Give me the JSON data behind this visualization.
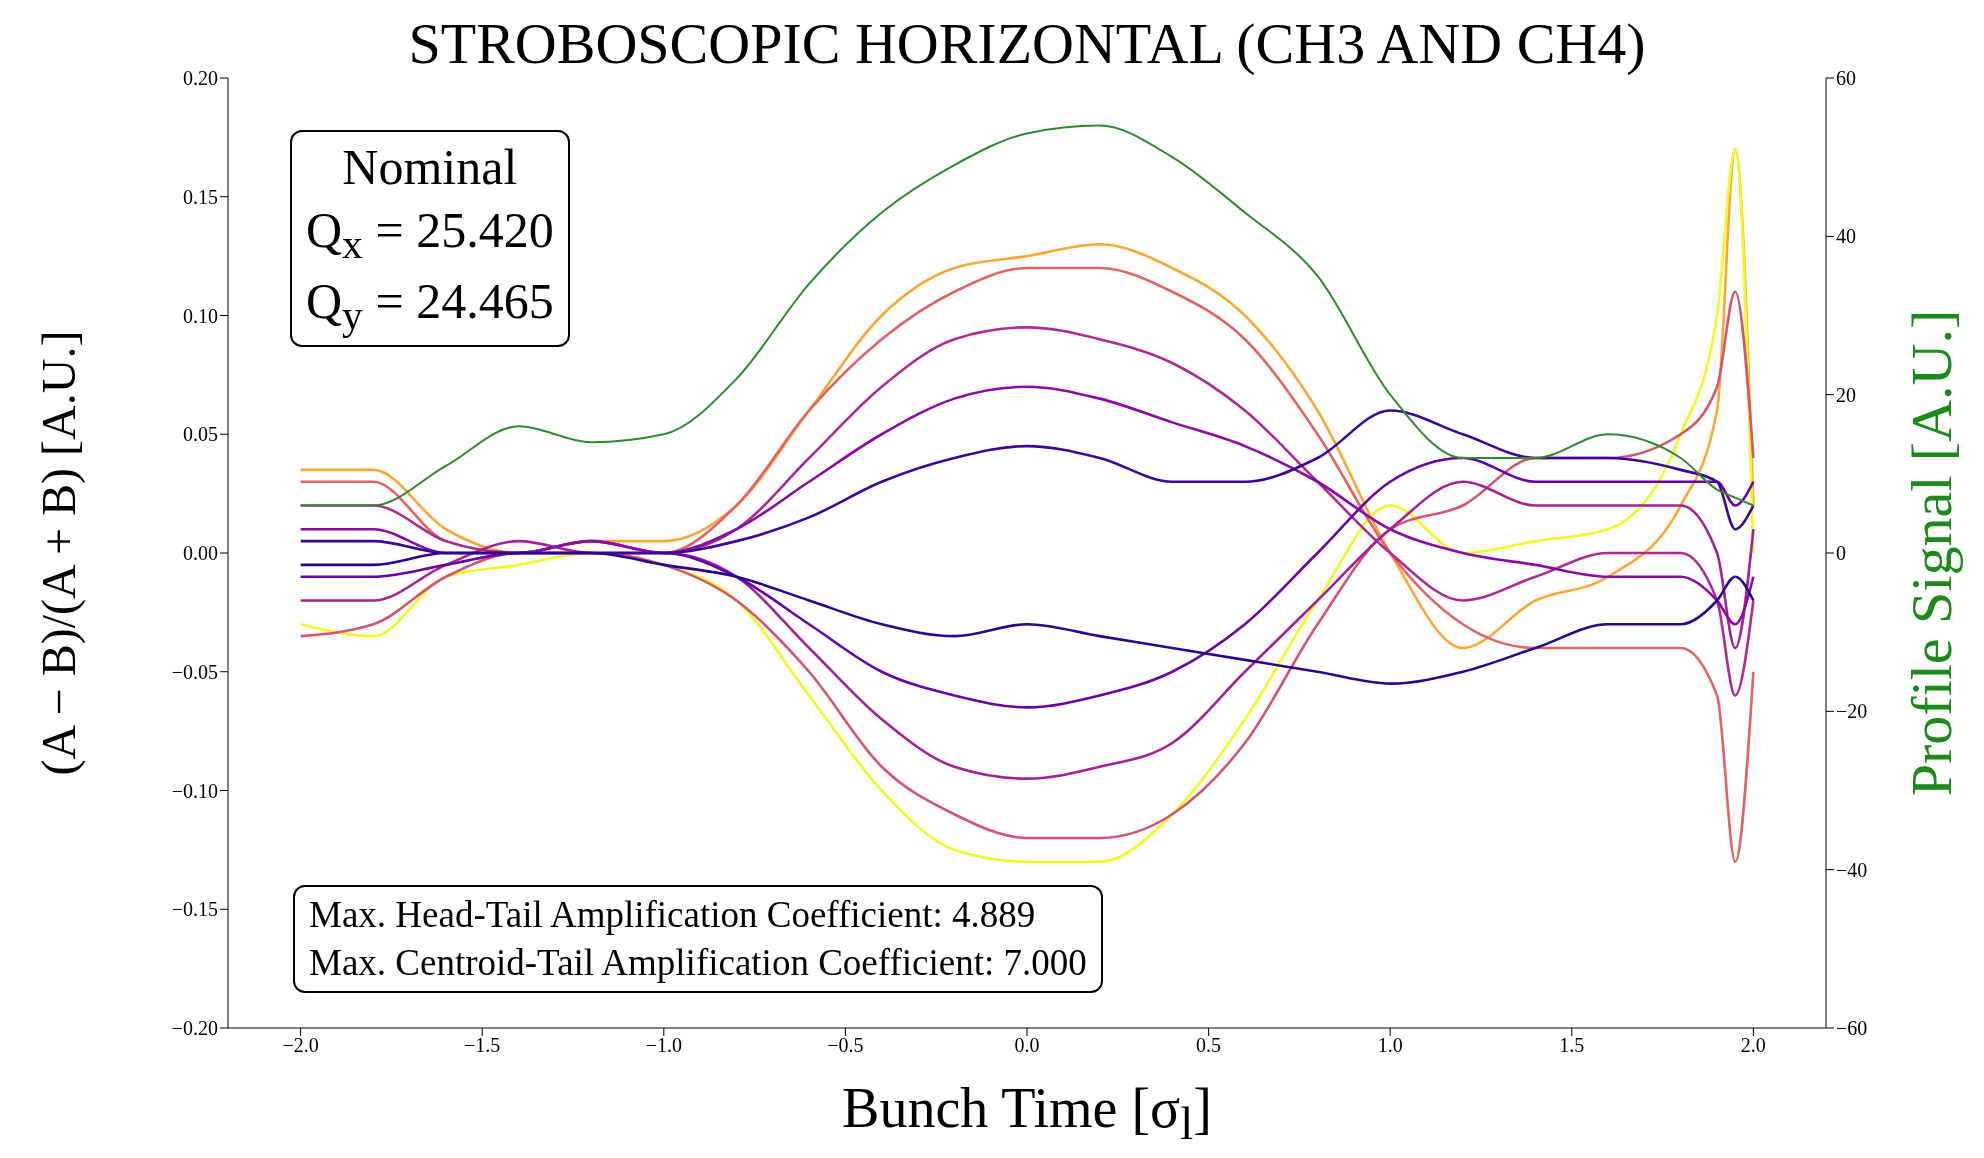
{
  "chart_data": {
    "type": "line",
    "title": "STROBOSCOPIC HORIZONTAL (CH3 AND CH4)",
    "xlabel": "Bunch Time [σ$_{l}$]",
    "ylabel": "(A − B)/(A + B) [A.U.]",
    "y2label": "Profile Signal [A.U.]",
    "x": [
      -2,
      -1.8,
      -1.6,
      -1.4,
      -1.2,
      -1.0,
      -0.8,
      -0.6,
      -0.4,
      -0.2,
      0,
      0.2,
      0.4,
      0.6,
      0.8,
      1.0,
      1.2,
      1.4,
      1.6,
      1.8,
      1.9,
      1.95,
      2.0
    ],
    "xlim": [
      -2.2,
      2.2
    ],
    "xticks": [
      {
        "value": -2,
        "label": "−2.0"
      },
      {
        "value": -1.5,
        "label": "−1.5"
      },
      {
        "value": -1,
        "label": "−1.0"
      },
      {
        "value": -0.5,
        "label": "−0.5"
      },
      {
        "value": 0,
        "label": "0.0"
      },
      {
        "value": 0.5,
        "label": "0.5"
      },
      {
        "value": 1,
        "label": "1.0"
      },
      {
        "value": 1.5,
        "label": "1.5"
      },
      {
        "value": 2,
        "label": "2.0"
      }
    ],
    "ylim": [
      -0.2,
      0.2
    ],
    "yticks": [
      {
        "value": -0.2,
        "label": "−0.20"
      },
      {
        "value": -0.15,
        "label": "−0.15"
      },
      {
        "value": -0.1,
        "label": "−0.10"
      },
      {
        "value": -0.05,
        "label": "−0.05"
      },
      {
        "value": 0,
        "label": "0.00"
      },
      {
        "value": 0.05,
        "label": "0.05"
      },
      {
        "value": 0.1,
        "label": "0.10"
      },
      {
        "value": 0.15,
        "label": "0.15"
      },
      {
        "value": 0.2,
        "label": "0.20"
      }
    ],
    "y2lim": [
      -60,
      60
    ],
    "y2ticks": [
      {
        "value": -60,
        "label": "−60"
      },
      {
        "value": -40,
        "label": "−40"
      },
      {
        "value": -20,
        "label": "−20"
      },
      0,
      20,
      40,
      60
    ],
    "series": [
      {
        "color": "#fca636",
        "values": [
          0.035,
          0.035,
          0.01,
          0.0,
          0.005,
          0.005,
          0.02,
          0.06,
          0.1,
          0.12,
          0.125,
          0.13,
          0.12,
          0.1,
          0.06,
          0.0,
          -0.04,
          -0.02,
          -0.01,
          0.02,
          0.06,
          0.17,
          0.02
        ]
      },
      {
        "color": "#f0f921",
        "values": [
          -0.03,
          -0.035,
          -0.01,
          -0.005,
          0.0,
          -0.005,
          -0.02,
          -0.06,
          -0.1,
          -0.125,
          -0.13,
          -0.13,
          -0.11,
          -0.07,
          -0.02,
          0.02,
          0.0,
          0.005,
          0.01,
          0.05,
          0.1,
          0.17,
          0.0
        ]
      },
      {
        "color": "#e16462",
        "values": [
          0.03,
          0.03,
          0.005,
          0.0,
          0.005,
          0.0,
          0.02,
          0.06,
          0.09,
          0.11,
          0.12,
          0.12,
          0.11,
          0.09,
          0.05,
          0.0,
          -0.03,
          -0.04,
          -0.04,
          -0.04,
          -0.06,
          -0.13,
          -0.05
        ]
      },
      {
        "color": "#d5546e",
        "values": [
          -0.035,
          -0.03,
          -0.01,
          0.0,
          0.0,
          -0.005,
          -0.02,
          -0.05,
          -0.09,
          -0.11,
          -0.12,
          -0.12,
          -0.11,
          -0.08,
          -0.03,
          0.01,
          0.02,
          0.04,
          0.04,
          0.05,
          0.07,
          0.11,
          0.04
        ]
      },
      {
        "color": "#b12a90",
        "values": [
          0.02,
          0.02,
          0.005,
          0.0,
          0.005,
          0.0,
          0.01,
          0.04,
          0.07,
          0.09,
          0.095,
          0.09,
          0.08,
          0.06,
          0.03,
          0.0,
          -0.02,
          -0.01,
          0.0,
          0.0,
          -0.02,
          -0.06,
          -0.02
        ]
      },
      {
        "color": "#a62098",
        "values": [
          -0.02,
          -0.02,
          -0.005,
          0.005,
          0.0,
          0.0,
          -0.01,
          -0.04,
          -0.07,
          -0.09,
          -0.095,
          -0.09,
          -0.08,
          -0.05,
          -0.02,
          0.01,
          0.03,
          0.02,
          0.02,
          0.02,
          0.0,
          -0.04,
          0.01
        ]
      },
      {
        "color": "#8b0aa5",
        "values": [
          0.01,
          0.01,
          0.0,
          0.0,
          0.005,
          0.0,
          0.01,
          0.03,
          0.05,
          0.065,
          0.07,
          0.065,
          0.055,
          0.045,
          0.03,
          0.01,
          0.0,
          -0.005,
          -0.01,
          -0.01,
          -0.02,
          -0.03,
          -0.01
        ]
      },
      {
        "color": "#6a00a8",
        "values": [
          -0.01,
          -0.01,
          -0.005,
          0.0,
          0.0,
          0.0,
          -0.01,
          -0.03,
          -0.05,
          -0.06,
          -0.065,
          -0.06,
          -0.05,
          -0.03,
          0.0,
          0.03,
          0.04,
          0.03,
          0.03,
          0.03,
          0.03,
          0.02,
          0.03
        ]
      },
      {
        "color": "#3b049a",
        "values": [
          0.005,
          0.005,
          0.0,
          0.0,
          0.0,
          0.0,
          0.005,
          0.015,
          0.03,
          0.04,
          0.045,
          0.04,
          0.03,
          0.03,
          0.04,
          0.06,
          0.05,
          0.04,
          0.04,
          0.035,
          0.03,
          0.01,
          0.02
        ]
      },
      {
        "color": "#2a0593",
        "values": [
          -0.005,
          -0.005,
          0.0,
          0.0,
          0.0,
          -0.005,
          -0.01,
          -0.02,
          -0.03,
          -0.035,
          -0.03,
          -0.035,
          -0.04,
          -0.045,
          -0.05,
          -0.055,
          -0.05,
          -0.04,
          -0.03,
          -0.03,
          -0.02,
          -0.01,
          -0.02
        ]
      },
      {
        "axis": "y2",
        "color": "#2e8b2e",
        "values": [
          6,
          6,
          11,
          16,
          14,
          15,
          22,
          34,
          43,
          49,
          53,
          54,
          50,
          43,
          35,
          20,
          12,
          12,
          15,
          12,
          8,
          7,
          6
        ]
      }
    ],
    "annotations": [
      "Nominal\nQ$_{x}$ = 25.420\nQ$_{y}$ = 24.465",
      "Max. Head-Tail Amplification Coefficient: 4.889\nMax. Centroid-Tail Amplification Coefficient: 7.000"
    ]
  }
}
